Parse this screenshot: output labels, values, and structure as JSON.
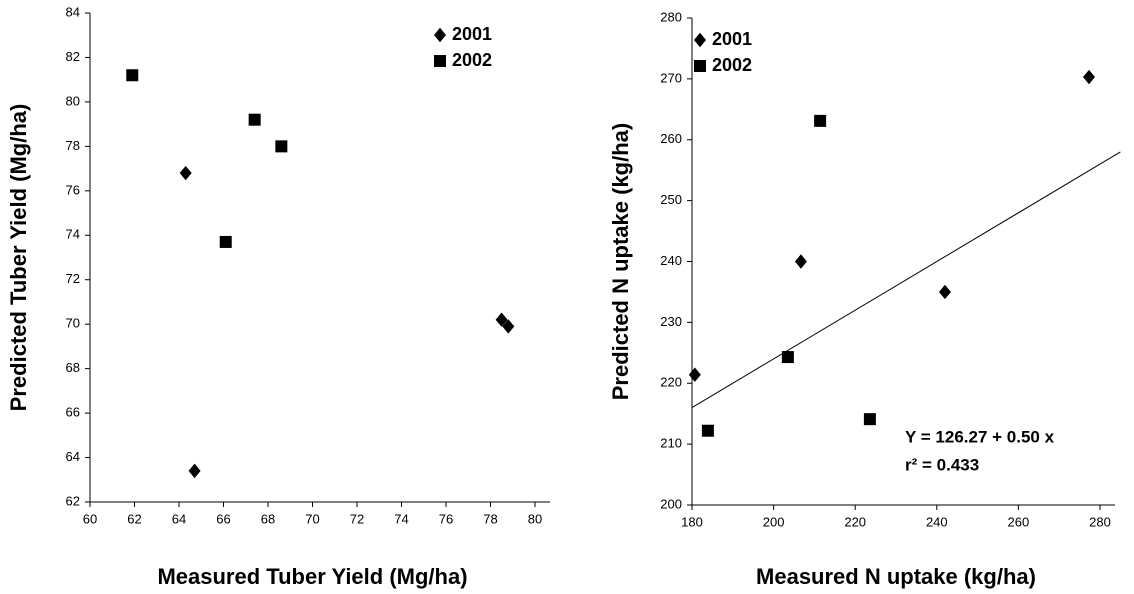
{
  "chart_data": [
    {
      "type": "scatter",
      "x_label": "Measured Tuber Yield (Mg/ha)",
      "y_label": "Predicted Tuber Yield (Mg/ha)",
      "xlim": [
        60,
        80
      ],
      "xticks": [
        60,
        62,
        64,
        66,
        68,
        70,
        72,
        74,
        76,
        78,
        80
      ],
      "ylim": [
        62,
        84
      ],
      "yticks": [
        62,
        64,
        66,
        68,
        70,
        72,
        74,
        76,
        78,
        80,
        82,
        84
      ],
      "legend": "upper right",
      "series": [
        {
          "name": "2001",
          "color": "#000000",
          "marker": "diamond",
          "x": [
            64.3,
            64.7,
            78.5,
            78.8
          ],
          "values": [
            76.8,
            63.4,
            70.2,
            69.9
          ]
        },
        {
          "name": "2002",
          "color": "#000000",
          "marker": "square",
          "x": [
            61.9,
            67.4,
            68.6,
            66.1
          ],
          "values": [
            81.2,
            79.2,
            78.0,
            73.7
          ]
        }
      ]
    },
    {
      "type": "scatter",
      "x_label": "Measured N uptake (kg/ha)",
      "y_label": "Predicted N uptake (kg/ha)",
      "xlim": [
        180,
        280
      ],
      "xticks": [
        180,
        200,
        220,
        240,
        260,
        280
      ],
      "ylim": [
        200,
        280
      ],
      "yticks": [
        200,
        210,
        220,
        230,
        240,
        250,
        260,
        270,
        280
      ],
      "legend": "upper left",
      "series": [
        {
          "name": "2001",
          "color": "#000000",
          "marker": "diamond",
          "x": [
            277.3,
            180.7,
            206.7,
            242
          ],
          "values": [
            270.3,
            221.4,
            240,
            235
          ]
        },
        {
          "name": "2002",
          "color": "#000000",
          "marker": "square",
          "x": [
            211.4,
            203.5,
            183.9,
            223.6
          ],
          "values": [
            263.1,
            224.3,
            212.2,
            214.1
          ]
        }
      ],
      "fit_line": {
        "x": [
          180,
          285
        ],
        "values": [
          216,
          258
        ]
      },
      "annotations": [
        "Y = 126.27 + 0.50 x",
        "r² = 0.433"
      ]
    }
  ]
}
